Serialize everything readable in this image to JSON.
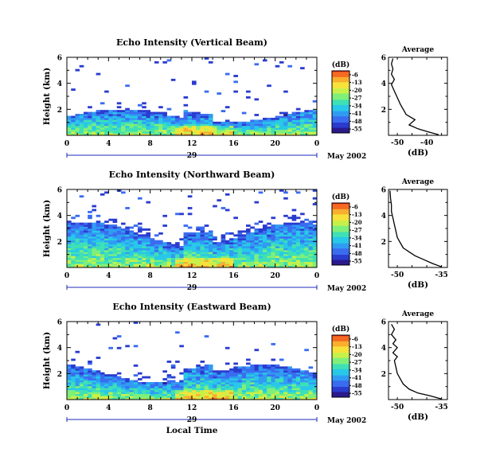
{
  "colors": {
    "colormap": [
      "#2a1a8c",
      "#2a3ccf",
      "#3a6cf0",
      "#2f9cf2",
      "#29c8e8",
      "#3fe0b4",
      "#7ef07a",
      "#c8f04a",
      "#f6e23a",
      "#f9ae2e",
      "#f66a22",
      "#e8281e"
    ],
    "line": "#000000",
    "timeline": "#1f2bb8"
  },
  "chart_data": [
    {
      "type": "heatmap",
      "title": "Echo Intensity (Vertical Beam)",
      "ylabel": "Height (km)",
      "xticks": [
        "0",
        "4",
        "8",
        "12",
        "16",
        "20",
        "0"
      ],
      "yticks": [
        "2",
        "4",
        "6"
      ],
      "xlim": [
        0,
        24
      ],
      "ylim": [
        0,
        6
      ],
      "date_label": "29",
      "month_label": "May 2002",
      "colorbar": {
        "title": "(dB)",
        "ticks": [
          "-6",
          "-13",
          "-20",
          "-27",
          "-34",
          "-41",
          "-48",
          "-55"
        ]
      },
      "profile": {
        "title": "Average",
        "xlabel": "(dB)",
        "xticks": [
          "-50",
          "-40"
        ],
        "yticks": [
          "2",
          "4",
          "6"
        ],
        "xlim": [
          -53,
          -33
        ],
        "ylim": [
          0,
          6
        ],
        "points": [
          [
            -36,
            0.05
          ],
          [
            -40,
            0.3
          ],
          [
            -43,
            0.5
          ],
          [
            -46,
            0.8
          ],
          [
            -44,
            1.2
          ],
          [
            -47,
            1.6
          ],
          [
            -48,
            2.0
          ],
          [
            -49,
            2.4
          ],
          [
            -50,
            2.9
          ],
          [
            -51,
            3.4
          ],
          [
            -52,
            3.9
          ],
          [
            -51,
            4.3
          ],
          [
            -52,
            4.7
          ],
          [
            -51.5,
            5.1
          ],
          [
            -52,
            5.5
          ],
          [
            -51.5,
            5.9
          ]
        ]
      }
    },
    {
      "type": "heatmap",
      "title": "Echo Intensity (Northward Beam)",
      "ylabel": "Height (km)",
      "xticks": [
        "0",
        "4",
        "8",
        "12",
        "16",
        "20",
        "0"
      ],
      "yticks": [
        "2",
        "4",
        "6"
      ],
      "xlim": [
        0,
        24
      ],
      "ylim": [
        0,
        6
      ],
      "date_label": "29",
      "month_label": "May 2002",
      "colorbar": {
        "title": "(dB)",
        "ticks": [
          "-6",
          "-13",
          "-20",
          "-27",
          "-34",
          "-41",
          "-48",
          "-55"
        ]
      },
      "profile": {
        "title": "Average",
        "xlabel": "(dB)",
        "xticks": [
          "-50",
          "-35"
        ],
        "yticks": [
          "2",
          "4",
          "6"
        ],
        "xlim": [
          -53,
          -33
        ],
        "ylim": [
          0,
          6
        ],
        "points": [
          [
            -35,
            0.05
          ],
          [
            -38,
            0.3
          ],
          [
            -41,
            0.6
          ],
          [
            -44,
            0.9
          ],
          [
            -46,
            1.2
          ],
          [
            -48,
            1.5
          ],
          [
            -49,
            1.9
          ],
          [
            -50,
            2.3
          ],
          [
            -50.5,
            2.8
          ],
          [
            -51,
            3.3
          ],
          [
            -51.5,
            3.8
          ],
          [
            -52,
            4.3
          ],
          [
            -52,
            4.8
          ],
          [
            -52.3,
            5.3
          ],
          [
            -52.5,
            5.9
          ]
        ]
      }
    },
    {
      "type": "heatmap",
      "title": "Echo Intensity (Eastward Beam)",
      "ylabel": "Height (km)",
      "xticks": [
        "0",
        "4",
        "8",
        "12",
        "16",
        "20",
        "0"
      ],
      "yticks": [
        "2",
        "4",
        "6"
      ],
      "xlim": [
        0,
        24
      ],
      "ylim": [
        0,
        6
      ],
      "date_label": "29",
      "month_label": "May 2002",
      "xlabel": "Local Time",
      "colorbar": {
        "title": "(dB)",
        "ticks": [
          "-6",
          "-13",
          "-20",
          "-27",
          "-34",
          "-41",
          "-48",
          "-55"
        ]
      },
      "profile": {
        "title": "Average",
        "xlabel": "(dB)",
        "xticks": [
          "-50",
          "-35"
        ],
        "yticks": [
          "2",
          "4",
          "6"
        ],
        "xlim": [
          -53,
          -33
        ],
        "ylim": [
          0,
          6
        ],
        "points": [
          [
            -35,
            0.05
          ],
          [
            -39,
            0.3
          ],
          [
            -43,
            0.5
          ],
          [
            -46,
            0.8
          ],
          [
            -48,
            1.2
          ],
          [
            -49,
            1.6
          ],
          [
            -50,
            2.0
          ],
          [
            -50.5,
            2.5
          ],
          [
            -51,
            3.0
          ],
          [
            -50,
            3.3
          ],
          [
            -51.5,
            3.6
          ],
          [
            -50,
            4.0
          ],
          [
            -51.5,
            4.3
          ],
          [
            -50.5,
            4.6
          ],
          [
            -52,
            5.0
          ],
          [
            -51,
            5.4
          ],
          [
            -52,
            5.8
          ]
        ]
      }
    }
  ]
}
